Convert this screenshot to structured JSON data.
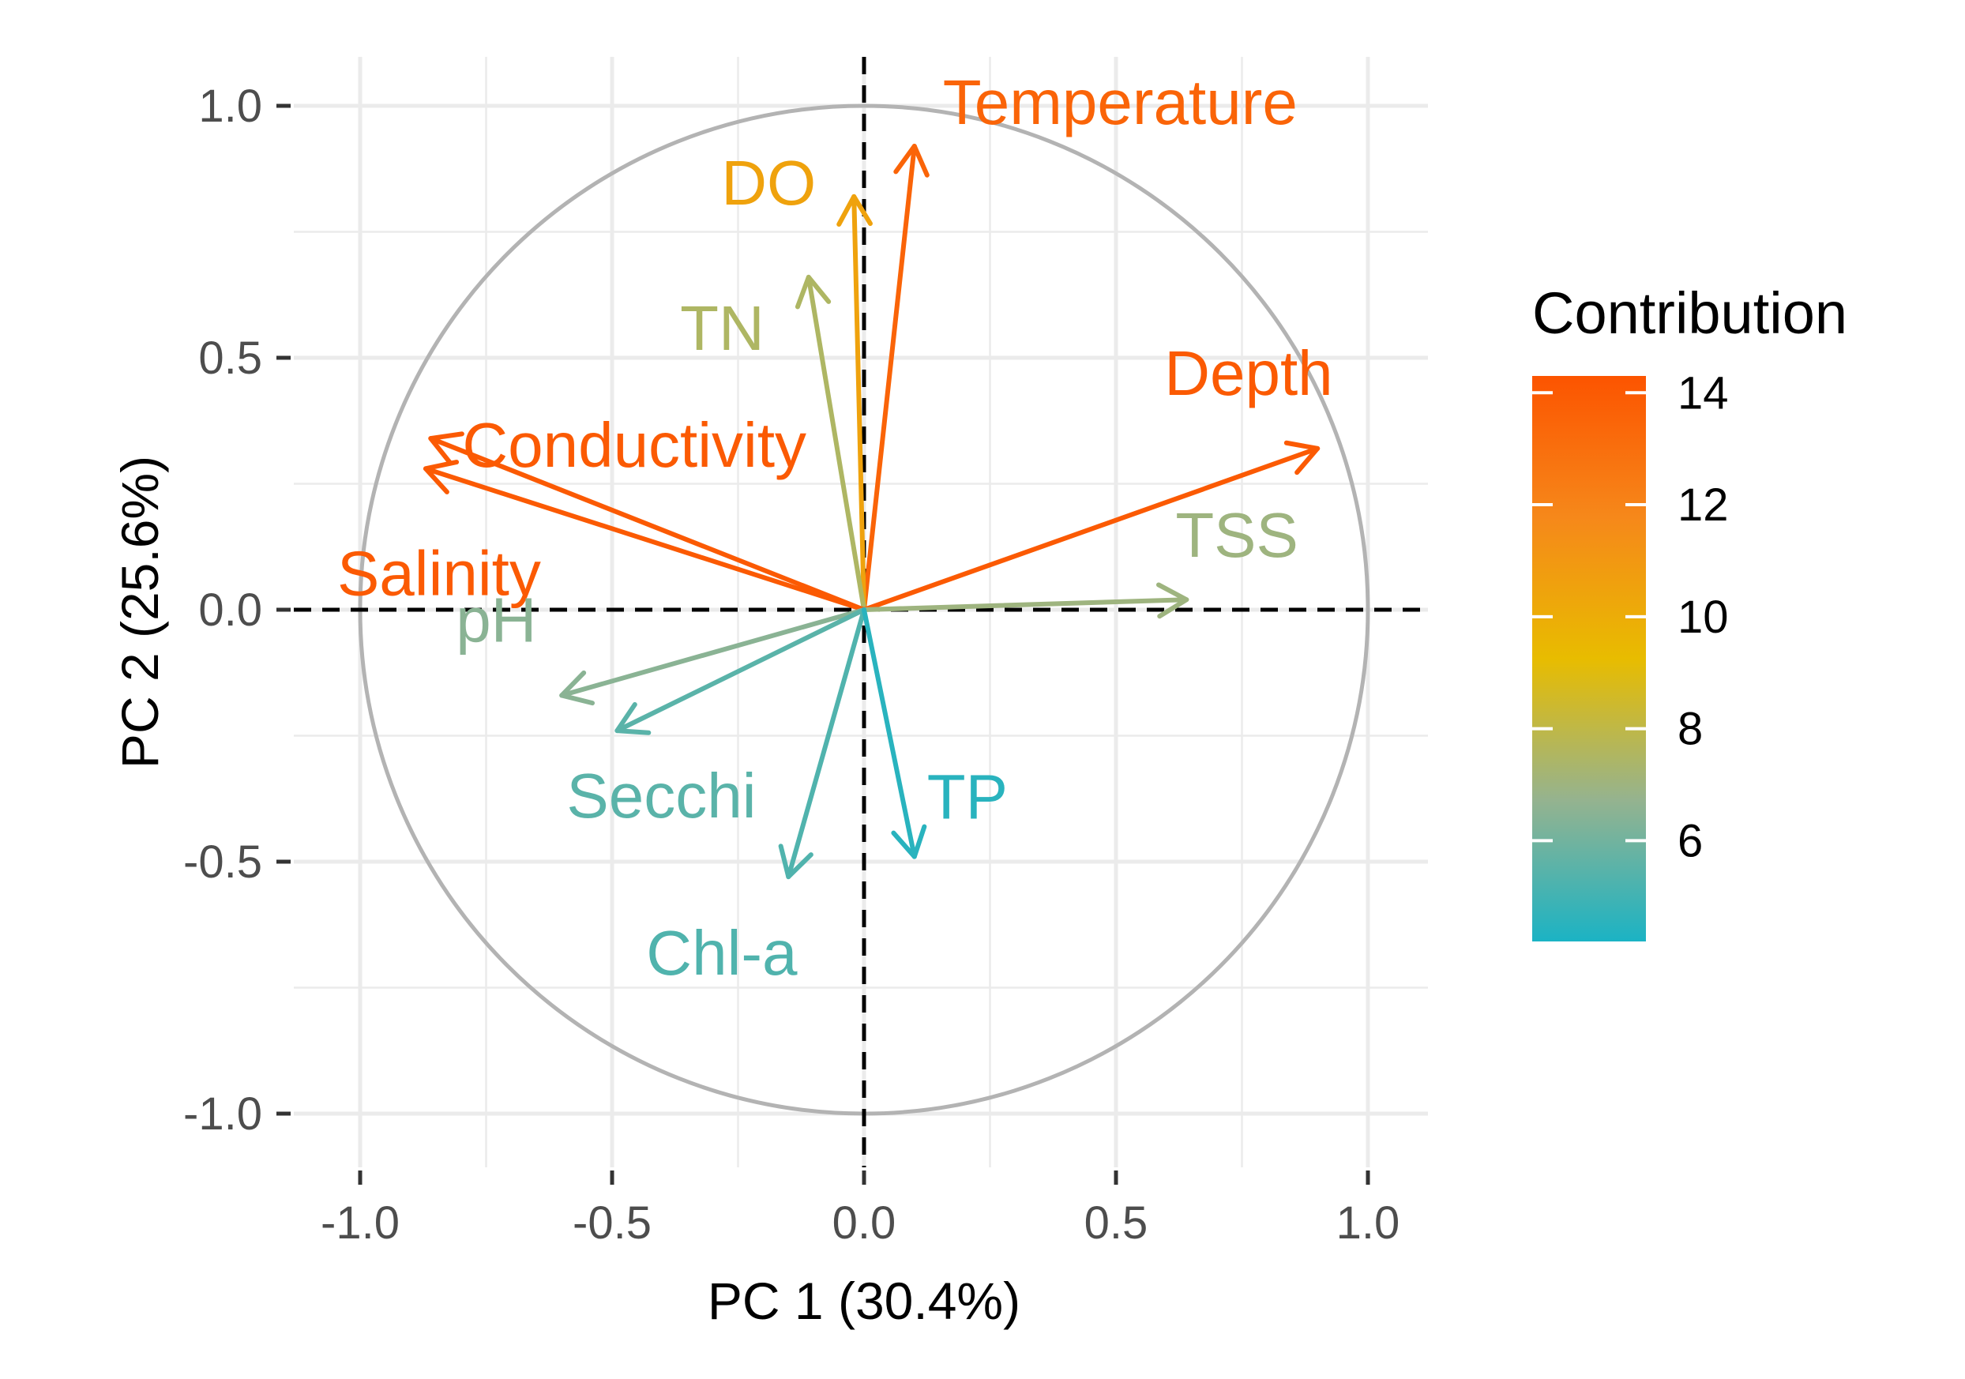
{
  "chart_data": {
    "type": "pca_correlation_circle",
    "xlabel": "PC 1 (30.4%)",
    "ylabel": "PC 2 (25.6%)",
    "xlim": [
      -1.0,
      1.0
    ],
    "ylim": [
      -1.0,
      1.0
    ],
    "x_ticks": [
      "-1.0",
      "-0.5",
      "0.0",
      "0.5",
      "1.0"
    ],
    "y_ticks": [
      "1.0",
      "0.5",
      "0.0",
      "-0.5",
      "-1.0"
    ],
    "grid": true,
    "legend": {
      "title": "Contribution",
      "ticks": [
        "14",
        "12",
        "10",
        "8",
        "6"
      ],
      "tick_values": [
        14,
        12,
        10,
        8,
        6
      ],
      "range": [
        4.2,
        14.3
      ],
      "gradient_colors": [
        "#1bb3c4",
        "#95b38f",
        "#e8bc00",
        "#f6881a",
        "#fc5400"
      ]
    },
    "variables": [
      {
        "name": "Temperature",
        "x": 0.1,
        "y": 0.92,
        "contrib": 13.5
      },
      {
        "name": "DO",
        "x": -0.02,
        "y": 0.82,
        "contrib": 10.5
      },
      {
        "name": "TN",
        "x": -0.11,
        "y": 0.66,
        "contrib": 7.5
      },
      {
        "name": "Conductivity",
        "x": -0.86,
        "y": 0.34,
        "contrib": 14.0
      },
      {
        "name": "Salinity",
        "x": -0.87,
        "y": 0.28,
        "contrib": 14.0
      },
      {
        "name": "Depth",
        "x": 0.9,
        "y": 0.32,
        "contrib": 14.0
      },
      {
        "name": "TSS",
        "x": 0.64,
        "y": 0.02,
        "contrib": 7.0
      },
      {
        "name": "pH",
        "x": -0.6,
        "y": -0.17,
        "contrib": 6.5
      },
      {
        "name": "Secchi",
        "x": -0.49,
        "y": -0.24,
        "contrib": 5.5
      },
      {
        "name": "Chl-a",
        "x": -0.15,
        "y": -0.53,
        "contrib": 5.3
      },
      {
        "name": "TP",
        "x": 0.1,
        "y": -0.49,
        "contrib": 4.5
      }
    ],
    "label_positions_note": "labels placed near arrow tips"
  }
}
